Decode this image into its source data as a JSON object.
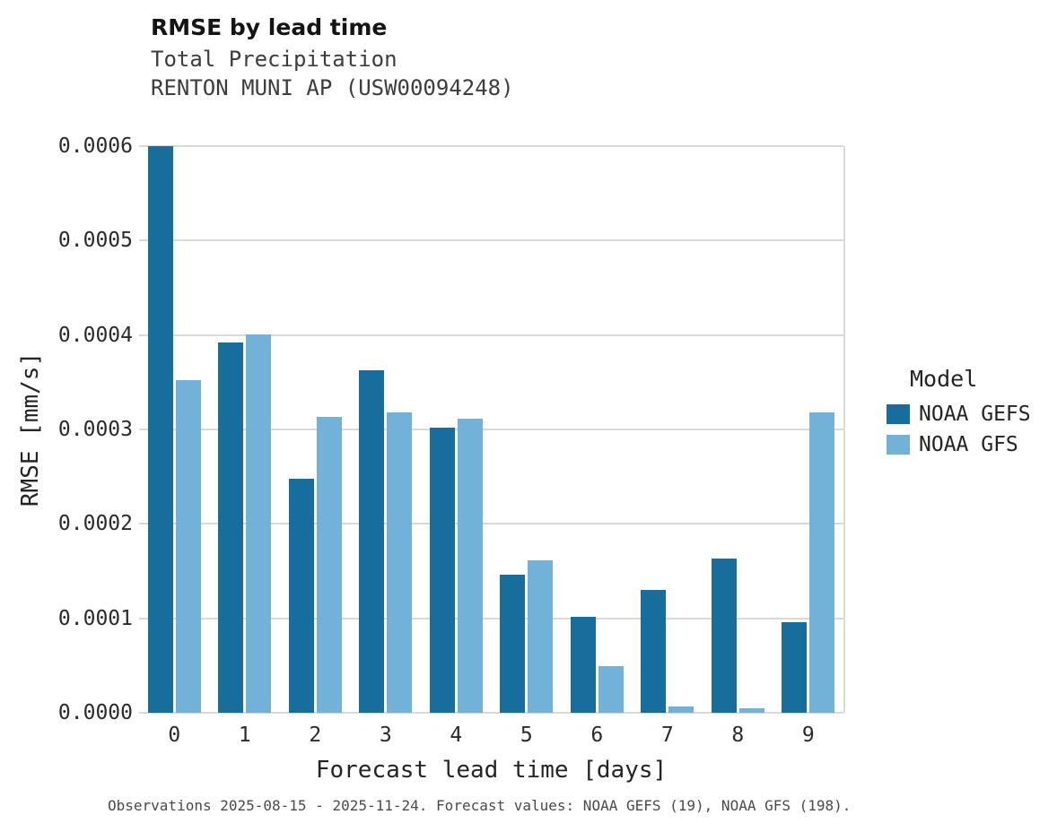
{
  "chart_data": {
    "type": "bar",
    "title": "RMSE by lead time",
    "subtitle": "Total Precipitation",
    "subtitle2": "RENTON MUNI AP (USW00094248)",
    "xlabel": "Forecast lead time [days]",
    "ylabel": "RMSE [mm/s]",
    "legend_title": "Model",
    "legend_position": "right",
    "grid": "horizontal",
    "categories": [
      "0",
      "1",
      "2",
      "3",
      "4",
      "5",
      "6",
      "7",
      "8",
      "9"
    ],
    "series": [
      {
        "name": "NOAA GEFS",
        "color": "#176d9c",
        "values": [
          0.0006,
          0.000392,
          0.000248,
          0.000363,
          0.000302,
          0.000146,
          0.000102,
          0.00013,
          0.000163,
          9.6e-05
        ]
      },
      {
        "name": "NOAA GFS",
        "color": "#72b2d8",
        "values": [
          0.000352,
          0.000401,
          0.000313,
          0.000318,
          0.000311,
          0.000161,
          4.9e-05,
          7e-06,
          5e-06,
          0.000318
        ]
      }
    ],
    "ylim": [
      0,
      0.0006
    ],
    "yticks": [
      "0.0000",
      "0.0001",
      "0.0002",
      "0.0003",
      "0.0004",
      "0.0005",
      "0.0006"
    ],
    "caption": "Observations 2025-08-15 - 2025-11-24. Forecast values: NOAA GEFS (19), NOAA GFS (198)."
  }
}
